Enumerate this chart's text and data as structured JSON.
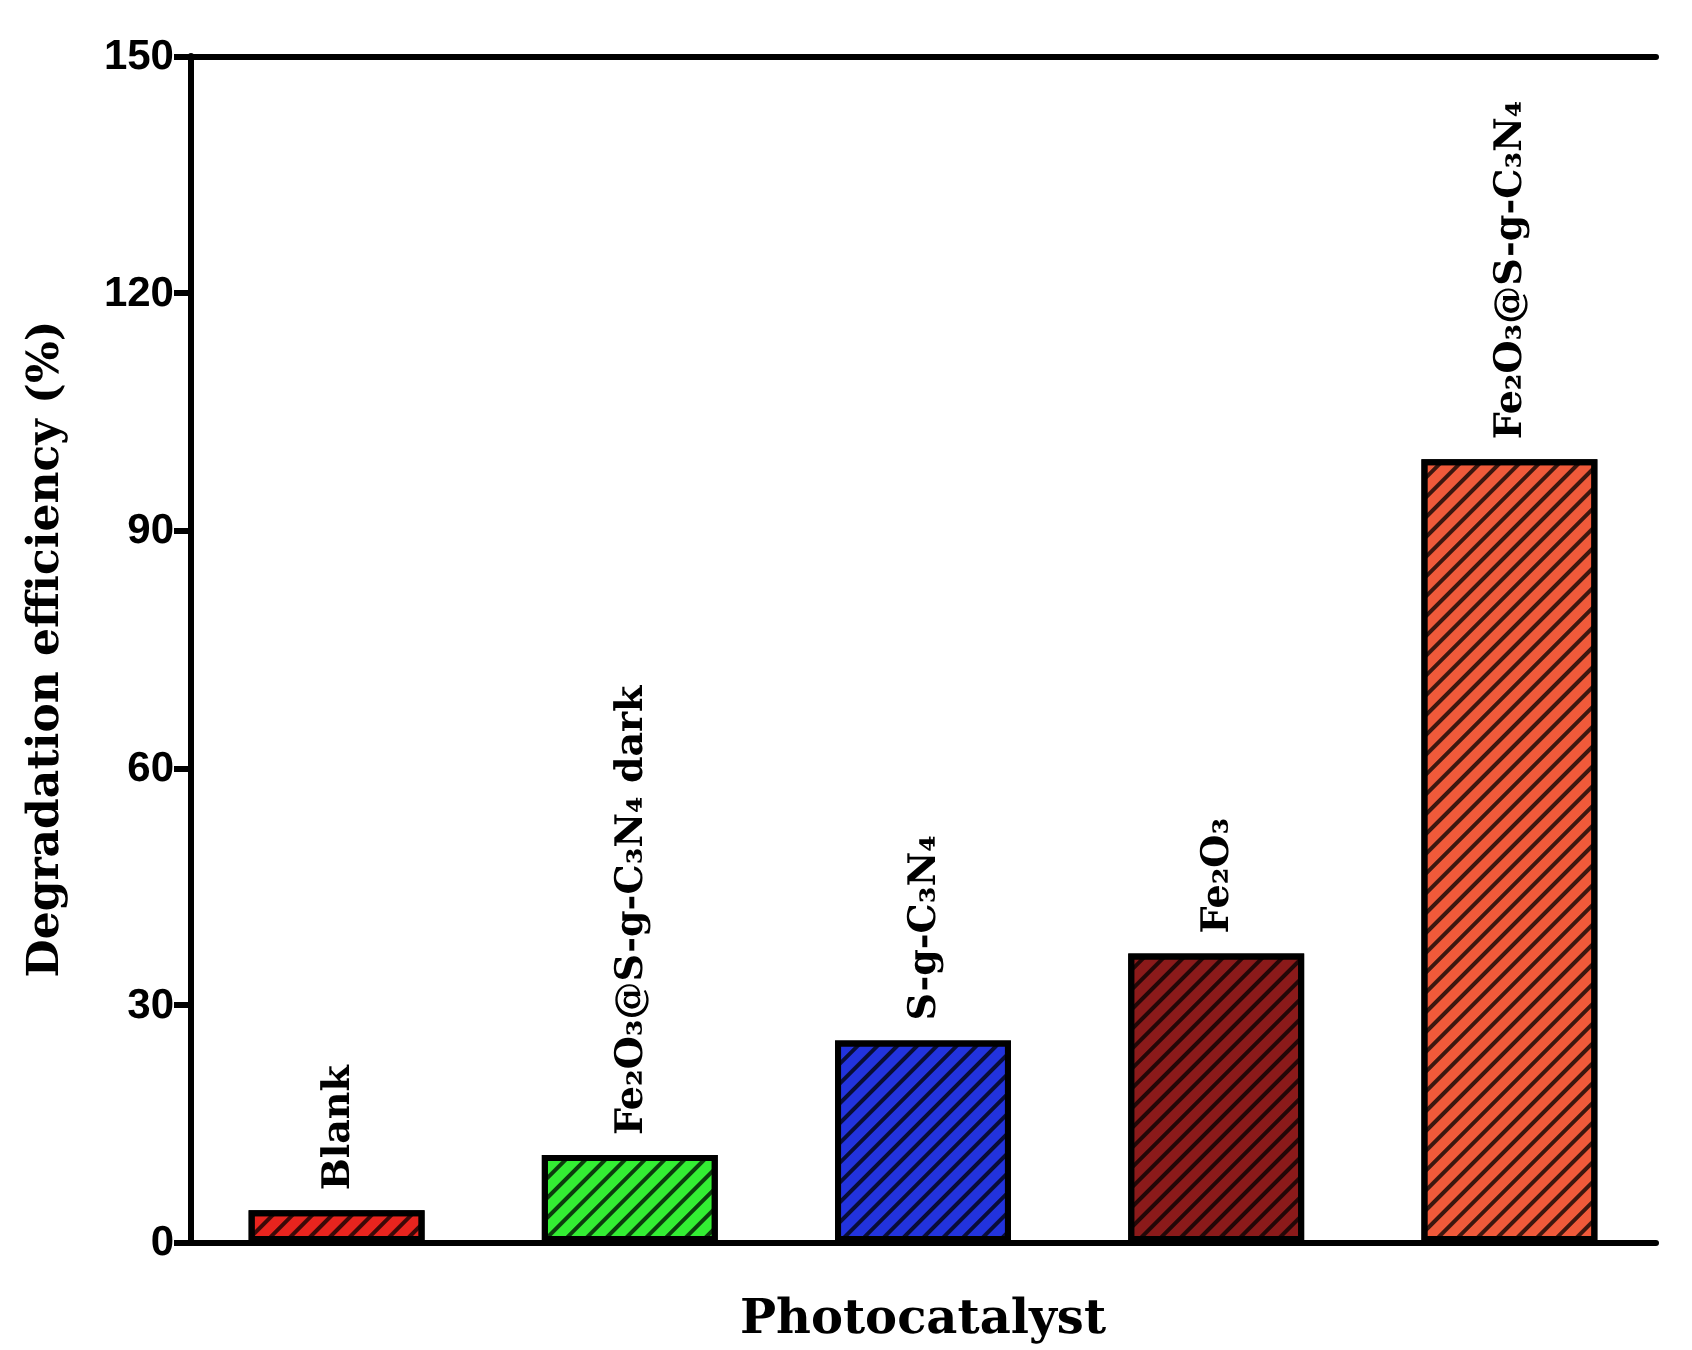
{
  "chart_data": {
    "type": "bar",
    "xlabel": "Photocatalyst",
    "ylabel": "Degradation efficiency (%)",
    "categories": [
      "Blank",
      "Fe₂O₃@S-g-C₃N₄ dark",
      "S-g-C₃N₄",
      "Fe₂O₃",
      "Fe₂O₃@S-g-C₃N₄"
    ],
    "values": [
      4,
      11,
      25.5,
      36.5,
      99
    ],
    "colors": [
      "#e8241e",
      "#33ee33",
      "#2233dd",
      "#8b1a1a",
      "#f05a3a"
    ],
    "ylim": [
      0,
      150
    ],
    "yticks": [
      0,
      30,
      60,
      90,
      120,
      150
    ],
    "grid": false
  }
}
